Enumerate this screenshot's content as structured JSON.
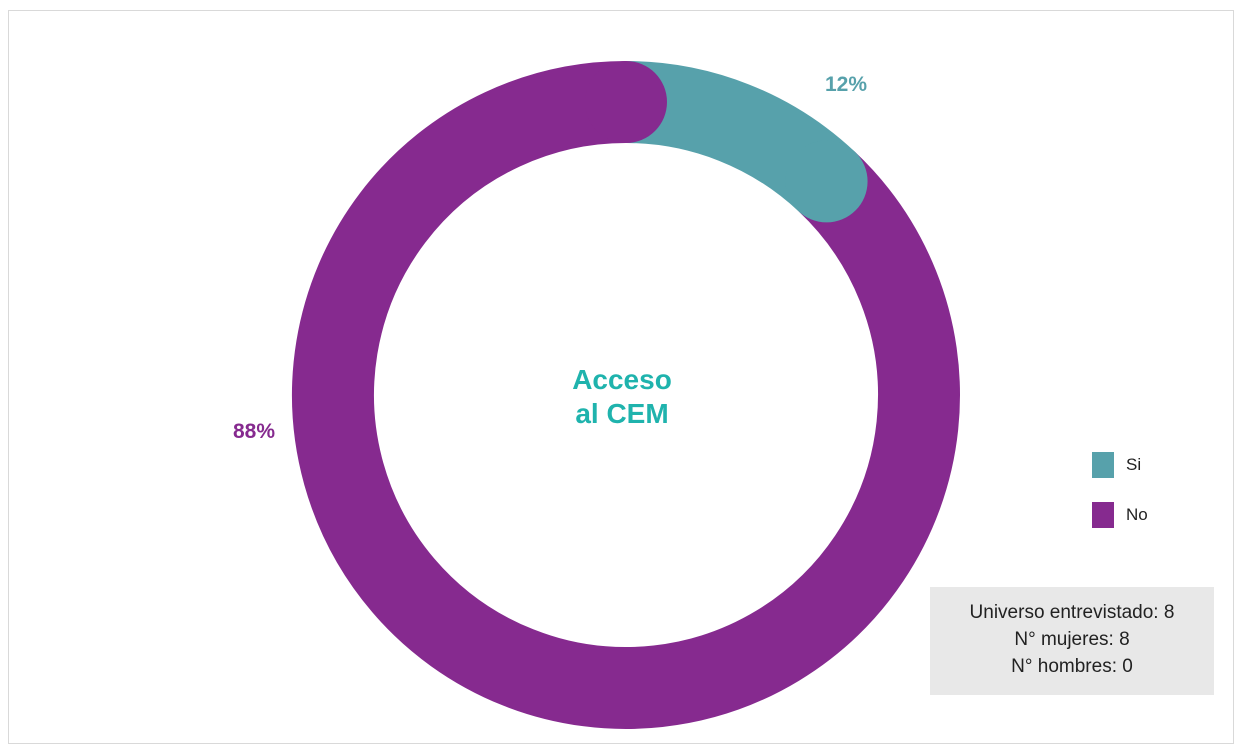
{
  "chart_data": {
    "type": "pie",
    "variant": "donut",
    "title": "Acceso al CEM",
    "title_lines": [
      "Acceso",
      "al CEM"
    ],
    "categories": [
      "Si",
      "No"
    ],
    "values": [
      12,
      88
    ],
    "labels": [
      "12%",
      "88%"
    ],
    "colors": [
      "#57a1ab",
      "#862a8f"
    ],
    "title_color": "#1fb3ad",
    "legend_position": "right"
  },
  "info_box": {
    "lines": [
      "Universo entrevistado: 8",
      "N° mujeres: 8",
      "N° hombres: 0"
    ]
  }
}
